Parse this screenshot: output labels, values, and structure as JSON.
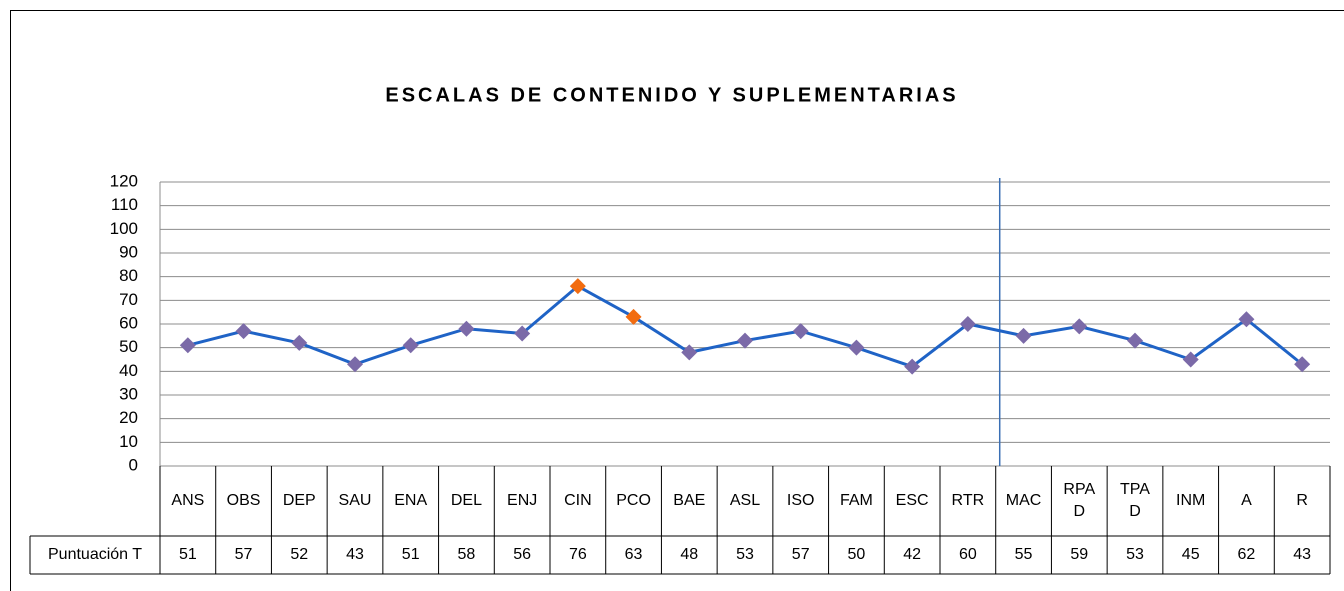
{
  "chart_data": {
    "type": "line",
    "title": "ESCALAS DE CONTENIDO Y SUPLEMENTARIAS",
    "categories": [
      "ANS",
      "OBS",
      "DEP",
      "SAU",
      "ENA",
      "DEL",
      "ENJ",
      "CIN",
      "PCO",
      "BAE",
      "ASL",
      "ISO",
      "FAM",
      "ESC",
      "RTR",
      "MAC",
      "RPA D",
      "TPA D",
      "INM",
      "A",
      "R"
    ],
    "series": [
      {
        "name": "Puntuación T",
        "color": "#1f63c6",
        "values": [
          51,
          57,
          52,
          43,
          51,
          58,
          56,
          76,
          63,
          48,
          53,
          57,
          50,
          42,
          60,
          55,
          59,
          53,
          45,
          62,
          43
        ],
        "marker_colors": [
          "#7b6aa8",
          "#7b6aa8",
          "#7b6aa8",
          "#7b6aa8",
          "#7b6aa8",
          "#7b6aa8",
          "#7b6aa8",
          "#f26c10",
          "#f26c10",
          "#7b6aa8",
          "#7b6aa8",
          "#7b6aa8",
          "#7b6aa8",
          "#7b6aa8",
          "#7b6aa8",
          "#7b6aa8",
          "#7b6aa8",
          "#7b6aa8",
          "#7b6aa8",
          "#7b6aa8",
          "#7b6aa8"
        ]
      }
    ],
    "ylim": [
      0,
      120
    ],
    "yticks": [
      0,
      10,
      20,
      30,
      40,
      50,
      60,
      70,
      80,
      90,
      100,
      110,
      120
    ],
    "grid": true
  }
}
